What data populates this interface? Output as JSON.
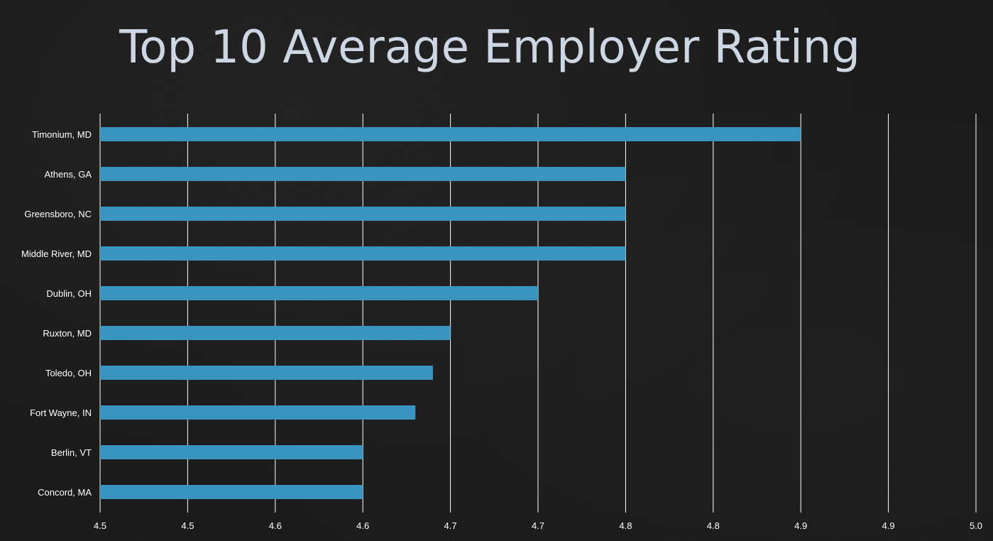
{
  "title": "Top 10 Average Employer Rating",
  "colors": {
    "bar": "#3a94c0",
    "grid": "#ffffff",
    "text": "#ffffff",
    "title": "#cdd7e3"
  },
  "chart_data": {
    "type": "bar",
    "orientation": "horizontal",
    "title": "Top 10 Average Employer Rating",
    "xlabel": "",
    "ylabel": "",
    "categories": [
      "Timonium, MD",
      "Athens, GA",
      "Greensboro, NC",
      "Middle River, MD",
      "Dublin, OH",
      "Ruxton, MD",
      "Toledo, OH",
      "Fort Wayne, IN",
      "Berlin, VT",
      "Concord, MA"
    ],
    "values": [
      4.9,
      4.8,
      4.8,
      4.8,
      4.75,
      4.7,
      4.69,
      4.68,
      4.65,
      4.65
    ],
    "xlim": [
      4.5,
      5.0
    ],
    "x_ticks": [
      "4.5",
      "4.5",
      "4.6",
      "4.6",
      "4.7",
      "4.7",
      "4.8",
      "4.8",
      "4.9",
      "4.9",
      "5.0"
    ],
    "grid": "vertical",
    "legend": "none"
  }
}
